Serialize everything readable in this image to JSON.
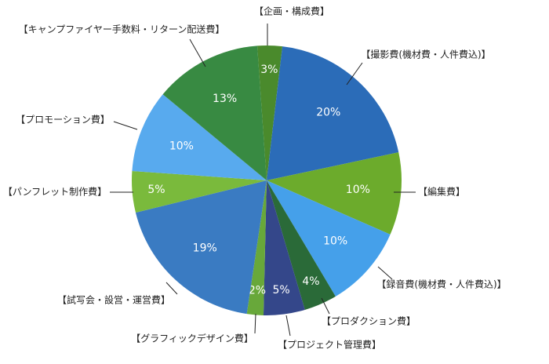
{
  "chart_data": {
    "type": "pie",
    "categories": [
      "【企画・構成費】",
      "【撮影費(機材費・人件費込)】",
      "【編集費】",
      "【録音費(機材費・人件費込)】",
      "【プロダクション費】",
      "【プロジェクト管理費】",
      "【グラフィックデザイン費】",
      "【試写会・設営・運営費】",
      "【パンフレット制作費】",
      "【プロモーション費】",
      "【キャンプファイヤー手数料・リターン配送費】"
    ],
    "values": [
      3,
      20,
      10,
      10,
      4,
      5,
      2,
      19,
      5,
      10,
      13
    ],
    "value_labels": [
      "3%",
      "20%",
      "10%",
      "10%",
      "4%",
      "5%",
      "2%",
      "19%",
      "5%",
      "10%",
      "13%"
    ],
    "colors": [
      "#4a8a2c",
      "#2b6cb8",
      "#6cab2c",
      "#45a0ea",
      "#2a6a38",
      "#34478a",
      "#68a83a",
      "#3a7bc2",
      "#7aba3c",
      "#58aaee",
      "#388a42"
    ]
  }
}
